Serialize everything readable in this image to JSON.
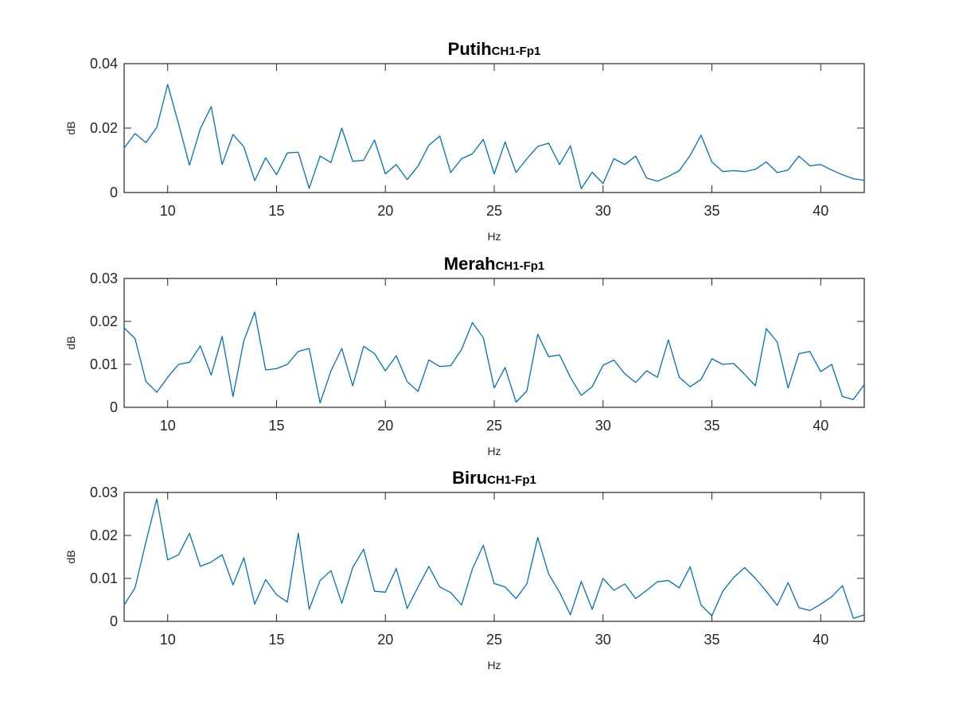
{
  "chart_data": [
    {
      "type": "line",
      "title": "Putih",
      "title_sub": "CH1-Fp1",
      "xlabel": "Hz",
      "ylabel": "dB",
      "xlim": [
        8,
        42
      ],
      "ylim": [
        0,
        0.04
      ],
      "xticks": [
        10,
        15,
        20,
        25,
        30,
        35,
        40
      ],
      "xtick_labels": [
        "10",
        "15",
        "20",
        "25",
        "30",
        "35",
        "40"
      ],
      "yticks": [
        0,
        0.02,
        0.04
      ],
      "ytick_labels": [
        "0",
        "0.02",
        "0.04"
      ],
      "grid": false,
      "color": "#0072BD",
      "x": [
        8,
        8.5,
        9,
        9.5,
        10,
        10.5,
        11,
        11.5,
        12,
        12.5,
        13,
        13.5,
        14,
        14.5,
        15,
        15.5,
        16,
        16.5,
        17,
        17.5,
        18,
        18.5,
        19,
        19.5,
        20,
        20.5,
        21,
        21.5,
        22,
        22.5,
        23,
        23.5,
        24,
        24.5,
        25,
        25.5,
        26,
        26.5,
        27,
        27.5,
        28,
        28.5,
        29,
        29.5,
        30,
        30.5,
        31,
        31.5,
        32,
        32.5,
        33,
        33.5,
        34,
        34.5,
        35,
        35.5,
        36,
        36.5,
        37,
        37.5,
        38,
        38.5,
        39,
        39.5,
        40,
        40.5,
        41,
        41.5,
        42
      ],
      "y": [
        0.0138,
        0.0183,
        0.0155,
        0.0202,
        0.0335,
        0.0213,
        0.0085,
        0.0198,
        0.0267,
        0.0087,
        0.018,
        0.0142,
        0.0037,
        0.0108,
        0.0055,
        0.0123,
        0.0125,
        0.0013,
        0.0113,
        0.0093,
        0.02,
        0.0097,
        0.01,
        0.0163,
        0.0058,
        0.0087,
        0.004,
        0.0082,
        0.0147,
        0.0175,
        0.0062,
        0.0105,
        0.012,
        0.0165,
        0.0058,
        0.0157,
        0.0062,
        0.0105,
        0.0143,
        0.0153,
        0.0087,
        0.0145,
        0.0012,
        0.0063,
        0.0028,
        0.0105,
        0.0087,
        0.0113,
        0.0045,
        0.0035,
        0.005,
        0.0068,
        0.0115,
        0.0178,
        0.0095,
        0.0065,
        0.0068,
        0.0065,
        0.0072,
        0.0095,
        0.0062,
        0.007,
        0.0113,
        0.0083,
        0.0087,
        0.007,
        0.0055,
        0.0043,
        0.0038
      ]
    },
    {
      "type": "line",
      "title": "Merah",
      "title_sub": "CH1-Fp1",
      "xlabel": "Hz",
      "ylabel": "dB",
      "xlim": [
        8,
        42
      ],
      "ylim": [
        0,
        0.03
      ],
      "xticks": [
        10,
        15,
        20,
        25,
        30,
        35,
        40
      ],
      "xtick_labels": [
        "10",
        "15",
        "20",
        "25",
        "30",
        "35",
        "40"
      ],
      "yticks": [
        0,
        0.01,
        0.02,
        0.03
      ],
      "ytick_labels": [
        "0",
        "0.01",
        "0.02",
        "0.03"
      ],
      "grid": false,
      "color": "#0072BD",
      "x": [
        8,
        8.5,
        9,
        9.5,
        10,
        10.5,
        11,
        11.5,
        12,
        12.5,
        13,
        13.5,
        14,
        14.5,
        15,
        15.5,
        16,
        16.5,
        17,
        17.5,
        18,
        18.5,
        19,
        19.5,
        20,
        20.5,
        21,
        21.5,
        22,
        22.5,
        23,
        23.5,
        24,
        24.5,
        25,
        25.5,
        26,
        26.5,
        27,
        27.5,
        28,
        28.5,
        29,
        29.5,
        30,
        30.5,
        31,
        31.5,
        32,
        32.5,
        33,
        33.5,
        34,
        34.5,
        35,
        35.5,
        36,
        36.5,
        37,
        37.5,
        38,
        38.5,
        39,
        39.5,
        40,
        40.5,
        41,
        41.5,
        42
      ],
      "y": [
        0.0185,
        0.016,
        0.006,
        0.0035,
        0.007,
        0.01,
        0.0105,
        0.0143,
        0.0075,
        0.0165,
        0.0025,
        0.0155,
        0.0222,
        0.0087,
        0.009,
        0.01,
        0.013,
        0.0137,
        0.001,
        0.0085,
        0.0137,
        0.005,
        0.0142,
        0.0125,
        0.0085,
        0.012,
        0.006,
        0.0037,
        0.011,
        0.0095,
        0.0097,
        0.0135,
        0.0197,
        0.0162,
        0.0045,
        0.0093,
        0.0012,
        0.0038,
        0.017,
        0.0118,
        0.0122,
        0.007,
        0.0028,
        0.0048,
        0.0098,
        0.011,
        0.0078,
        0.0058,
        0.0085,
        0.007,
        0.0157,
        0.007,
        0.0048,
        0.0065,
        0.0113,
        0.01,
        0.0102,
        0.0077,
        0.005,
        0.0183,
        0.0152,
        0.0045,
        0.0125,
        0.013,
        0.0083,
        0.01,
        0.0025,
        0.0018,
        0.0053
      ]
    },
    {
      "type": "line",
      "title": "Biru",
      "title_sub": "CH1-Fp1",
      "xlabel": "Hz",
      "ylabel": "dB",
      "xlim": [
        8,
        42
      ],
      "ylim": [
        0,
        0.03
      ],
      "xticks": [
        10,
        15,
        20,
        25,
        30,
        35,
        40
      ],
      "xtick_labels": [
        "10",
        "15",
        "20",
        "25",
        "30",
        "35",
        "40"
      ],
      "yticks": [
        0,
        0.01,
        0.02,
        0.03
      ],
      "ytick_labels": [
        "0",
        "0.01",
        "0.02",
        "0.03"
      ],
      "grid": false,
      "color": "#0072BD",
      "x": [
        8,
        8.5,
        9,
        9.5,
        10,
        10.5,
        11,
        11.5,
        12,
        12.5,
        13,
        13.5,
        14,
        14.5,
        15,
        15.5,
        16,
        16.5,
        17,
        17.5,
        18,
        18.5,
        19,
        19.5,
        20,
        20.5,
        21,
        21.5,
        22,
        22.5,
        23,
        23.5,
        24,
        24.5,
        25,
        25.5,
        26,
        26.5,
        27,
        27.5,
        28,
        28.5,
        29,
        29.5,
        30,
        30.5,
        31,
        31.5,
        32,
        32.5,
        33,
        33.5,
        34,
        34.5,
        35,
        35.5,
        36,
        36.5,
        37,
        37.5,
        38,
        38.5,
        39,
        39.5,
        40,
        40.5,
        41,
        41.5,
        42
      ],
      "y": [
        0.0038,
        0.0078,
        0.0185,
        0.0285,
        0.0143,
        0.0155,
        0.0205,
        0.0128,
        0.0138,
        0.0155,
        0.0085,
        0.0148,
        0.004,
        0.0097,
        0.0062,
        0.0045,
        0.0205,
        0.0028,
        0.0095,
        0.0118,
        0.0042,
        0.0125,
        0.0168,
        0.007,
        0.0068,
        0.0123,
        0.003,
        0.008,
        0.0128,
        0.008,
        0.0067,
        0.0038,
        0.0122,
        0.0177,
        0.0088,
        0.008,
        0.0053,
        0.0087,
        0.0195,
        0.011,
        0.0068,
        0.0015,
        0.0093,
        0.0028,
        0.01,
        0.0072,
        0.0087,
        0.0053,
        0.0072,
        0.0092,
        0.0095,
        0.0078,
        0.0127,
        0.0038,
        0.0013,
        0.007,
        0.0102,
        0.0125,
        0.01,
        0.007,
        0.0037,
        0.009,
        0.0032,
        0.0025,
        0.004,
        0.0057,
        0.0083,
        0.0007,
        0.0015
      ]
    }
  ]
}
